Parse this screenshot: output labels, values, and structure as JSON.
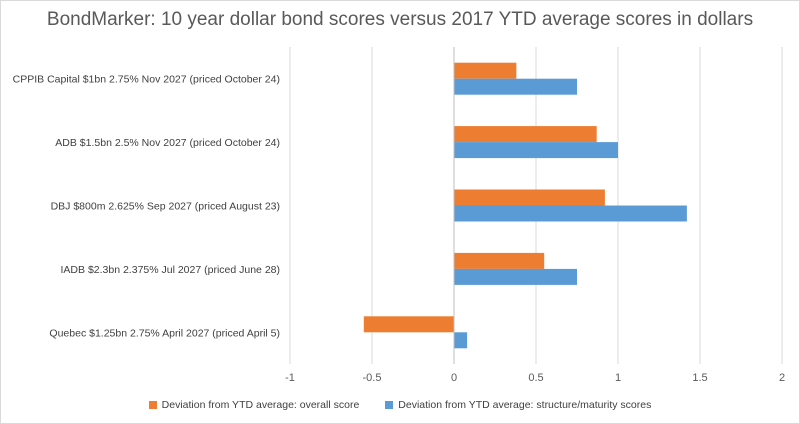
{
  "chart_data": {
    "type": "bar",
    "orientation": "horizontal",
    "title": "BondMarker: 10 year dollar bond scores versus 2017 YTD average scores in dollars",
    "categories": [
      "CPPIB Capital $1bn 2.75% Nov 2027 (priced October 24)",
      "ADB $1.5bn 2.5% Nov 2027 (priced October 24)",
      "DBJ $800m 2.625% Sep 2027 (priced August 23)",
      "IADB $2.3bn 2.375% Jul 2027 (priced June 28)",
      "Quebec $1.25bn 2.75% April 2027 (priced April 5)"
    ],
    "series": [
      {
        "name": "Deviation from YTD average: overall score",
        "color": "#ed7d31",
        "values": [
          0.38,
          0.87,
          0.92,
          0.55,
          -0.55
        ]
      },
      {
        "name": "Deviation from YTD average: structure/maturity scores",
        "color": "#5b9bd5",
        "values": [
          0.75,
          1.0,
          1.42,
          0.75,
          0.08
        ]
      }
    ],
    "xlim": [
      -1,
      2
    ],
    "xticks": [
      "-1",
      "-0.5",
      "0",
      "0.5",
      "1",
      "1.5",
      "2"
    ],
    "xtick_values": [
      -1,
      -0.5,
      0,
      0.5,
      1,
      1.5,
      2
    ],
    "grid": "vertical",
    "legend_position": "bottom"
  }
}
